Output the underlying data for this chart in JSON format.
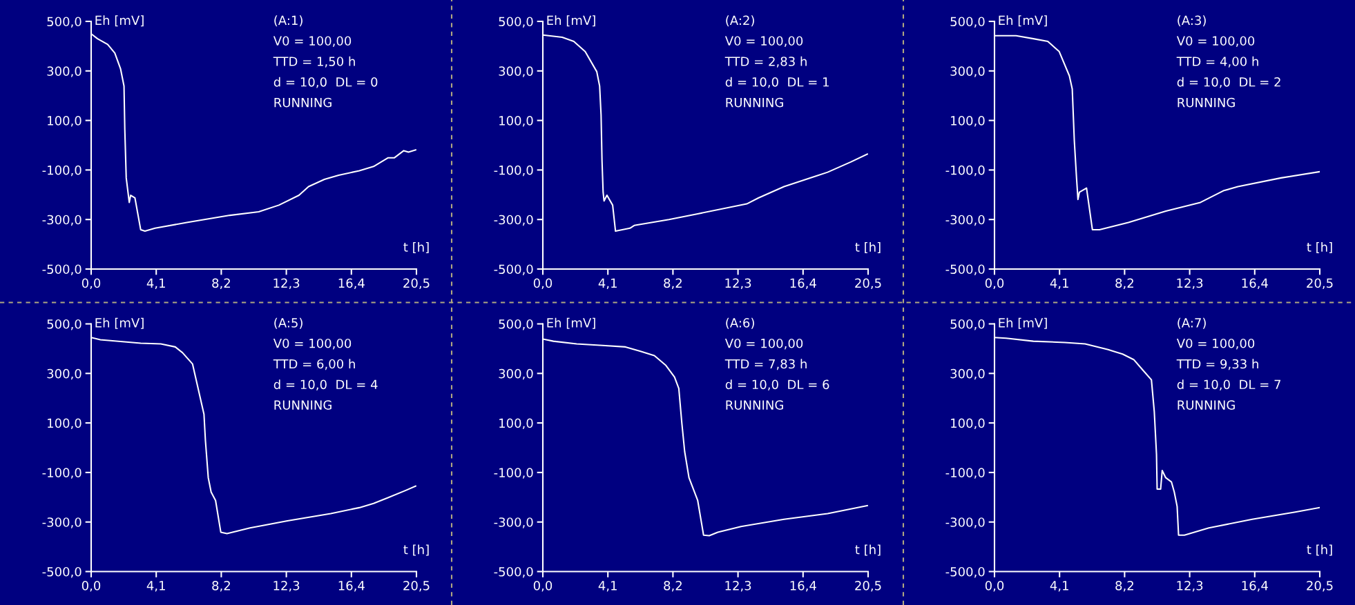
{
  "chart_data": [
    {
      "type": "line",
      "title": "(A:1)",
      "xlabel": "t [h]",
      "ylabel": "Eh [mV]",
      "annotations": [
        "V0 = 100,00",
        "TTD = 1,50 h",
        "d = 10,0  DL = 0",
        "RUNNING"
      ],
      "xlim": [
        0,
        20.5
      ],
      "ylim": [
        -500,
        500
      ],
      "xticks": [
        {
          "value": 0,
          "label": "0,0"
        },
        {
          "value": 4.1,
          "label": "4,1"
        },
        {
          "value": 8.2,
          "label": "8,2"
        },
        {
          "value": 12.3,
          "label": "12,3"
        },
        {
          "value": 16.4,
          "label": "16,4"
        },
        {
          "value": 20.5,
          "label": "20,5"
        }
      ],
      "yticks": [
        {
          "value": -500,
          "label": "-500,0"
        },
        {
          "value": -300,
          "label": "-300,0"
        },
        {
          "value": -100,
          "label": "-100,0"
        },
        {
          "value": 100,
          "label": "100,0"
        },
        {
          "value": 300,
          "label": "300,0"
        },
        {
          "value": 500,
          "label": "500,0"
        }
      ],
      "series": [
        {
          "color": "#ffffff",
          "x": [
            0,
            0.4,
            1.04,
            1.49,
            1.85,
            2.07,
            2.12,
            2.21,
            2.4,
            2.49,
            2.76,
            3.12,
            3.39,
            4.03,
            6.03,
            8.75,
            10.56,
            11.83,
            13.1,
            13.7,
            14.7,
            15.6,
            16.9,
            17.8,
            18.7,
            19.1,
            19.7,
            20.0,
            20.45
          ],
          "values": [
            450,
            430,
            407,
            372,
            309,
            239,
            65,
            -132,
            -231,
            -202,
            -213,
            -341,
            -347,
            -335,
            -312,
            -283,
            -269,
            -242,
            -202,
            -167,
            -138,
            -121,
            -103,
            -86,
            -51,
            -51,
            -22,
            -28,
            -19
          ]
        }
      ]
    },
    {
      "type": "line",
      "title": "(A:2)",
      "xlabel": "t [h]",
      "ylabel": "Eh [mV]",
      "annotations": [
        "V0 = 100,00",
        "TTD = 2,83 h",
        "d = 10,0  DL = 1",
        "RUNNING"
      ],
      "xlim": [
        0,
        20.5
      ],
      "ylim": [
        -500,
        500
      ],
      "xticks": [
        {
          "value": 0,
          "label": "0,0"
        },
        {
          "value": 4.1,
          "label": "4,1"
        },
        {
          "value": 8.2,
          "label": "8,2"
        },
        {
          "value": 12.3,
          "label": "12,3"
        },
        {
          "value": 16.4,
          "label": "16,4"
        },
        {
          "value": 20.5,
          "label": "20,5"
        }
      ],
      "yticks": [
        {
          "value": -500,
          "label": "-500,0"
        },
        {
          "value": -300,
          "label": "-300,0"
        },
        {
          "value": -100,
          "label": "-100,0"
        },
        {
          "value": 100,
          "label": "100,0"
        },
        {
          "value": 300,
          "label": "300,0"
        },
        {
          "value": 500,
          "label": "500,0"
        }
      ],
      "series": [
        {
          "color": "#ffffff",
          "x": [
            0,
            1.22,
            1.95,
            2.67,
            3.4,
            3.58,
            3.67,
            3.73,
            3.8,
            3.86,
            4.04,
            4.4,
            4.58,
            5.49,
            5.76,
            7.95,
            9.76,
            12.85,
            13.58,
            15.2,
            17.95,
            19.4,
            20.45
          ],
          "values": [
            445,
            436,
            419,
            378,
            297,
            239,
            123,
            -63,
            -190,
            -225,
            -202,
            -242,
            -347,
            -335,
            -324,
            -300,
            -277,
            -237,
            -213,
            -167,
            -109,
            -68,
            -36
          ]
        }
      ]
    },
    {
      "type": "line",
      "title": "(A:3)",
      "xlabel": "t [h]",
      "ylabel": "Eh [mV]",
      "annotations": [
        "V0 = 100,00",
        "TTD = 4,00 h",
        "d = 10,0  DL = 2",
        "RUNNING"
      ],
      "xlim": [
        0,
        20.5
      ],
      "ylim": [
        -500,
        500
      ],
      "xticks": [
        {
          "value": 0,
          "label": "0,0"
        },
        {
          "value": 4.1,
          "label": "4,1"
        },
        {
          "value": 8.2,
          "label": "8,2"
        },
        {
          "value": 12.3,
          "label": "12,3"
        },
        {
          "value": 16.4,
          "label": "16,4"
        },
        {
          "value": 20.5,
          "label": "20,5"
        }
      ],
      "yticks": [
        {
          "value": -500,
          "label": "-500,0"
        },
        {
          "value": -300,
          "label": "-300,0"
        },
        {
          "value": -100,
          "label": "-100,0"
        },
        {
          "value": 100,
          "label": "100,0"
        },
        {
          "value": 300,
          "label": "300,0"
        },
        {
          "value": 500,
          "label": "500,0"
        }
      ],
      "series": [
        {
          "color": "#ffffff",
          "x": [
            0,
            1.36,
            2.45,
            3.36,
            4.08,
            4.72,
            4.9,
            5.03,
            5.17,
            5.26,
            5.35,
            5.8,
            6.17,
            6.62,
            8.44,
            10.8,
            12.98,
            14.42,
            15.34,
            18.06,
            20.5
          ],
          "values": [
            442,
            442,
            430,
            419,
            378,
            280,
            227,
            19,
            -132,
            -219,
            -190,
            -173,
            -341,
            -341,
            -312,
            -266,
            -231,
            -184,
            -167,
            -132,
            -107
          ]
        }
      ]
    },
    {
      "type": "line",
      "title": "(A:5)",
      "xlabel": "t [h]",
      "ylabel": "Eh [mV]",
      "annotations": [
        "V0 = 100,00",
        "TTD = 6,00 h",
        "d = 10,0  DL = 4",
        "RUNNING"
      ],
      "xlim": [
        0,
        20.5
      ],
      "ylim": [
        -500,
        500
      ],
      "xticks": [
        {
          "value": 0,
          "label": "0,0"
        },
        {
          "value": 4.1,
          "label": "4,1"
        },
        {
          "value": 8.2,
          "label": "8,2"
        },
        {
          "value": 12.3,
          "label": "12,3"
        },
        {
          "value": 16.4,
          "label": "16,4"
        },
        {
          "value": 20.5,
          "label": "20,5"
        }
      ],
      "yticks": [
        {
          "value": -500,
          "label": "-500,0"
        },
        {
          "value": -300,
          "label": "-300,0"
        },
        {
          "value": -100,
          "label": "-100,0"
        },
        {
          "value": 100,
          "label": "100,0"
        },
        {
          "value": 300,
          "label": "300,0"
        },
        {
          "value": 500,
          "label": "500,0"
        }
      ],
      "series": [
        {
          "color": "#ffffff",
          "x": [
            0,
            0.58,
            3.12,
            4.39,
            5.3,
            5.75,
            6.39,
            6.66,
            7.11,
            7.2,
            7.38,
            7.56,
            7.84,
            8.17,
            8.56,
            10.01,
            12.37,
            15.1,
            16.9,
            17.8,
            18.7,
            19.8,
            20.45
          ],
          "values": [
            445,
            436,
            422,
            419,
            407,
            384,
            338,
            262,
            135,
            30,
            -121,
            -179,
            -213,
            -341,
            -347,
            -324,
            -295,
            -266,
            -242,
            -225,
            -202,
            -173,
            -155
          ]
        }
      ]
    },
    {
      "type": "line",
      "title": "(A:6)",
      "xlabel": "t [h]",
      "ylabel": "Eh [mV]",
      "annotations": [
        "V0 = 100,00",
        "TTD = 7,83 h",
        "d = 10,0  DL = 6",
        "RUNNING"
      ],
      "xlim": [
        0,
        20.5
      ],
      "ylim": [
        -500,
        500
      ],
      "xticks": [
        {
          "value": 0,
          "label": "0,0"
        },
        {
          "value": 4.1,
          "label": "4,1"
        },
        {
          "value": 8.2,
          "label": "8,2"
        },
        {
          "value": 12.3,
          "label": "12,3"
        },
        {
          "value": 16.4,
          "label": "16,4"
        },
        {
          "value": 20.5,
          "label": "20,5"
        }
      ],
      "yticks": [
        {
          "value": -500,
          "label": "-500,0"
        },
        {
          "value": -300,
          "label": "-300,0"
        },
        {
          "value": -100,
          "label": "-100,0"
        },
        {
          "value": 100,
          "label": "100,0"
        },
        {
          "value": 300,
          "label": "300,0"
        },
        {
          "value": 500,
          "label": "500,0"
        }
      ],
      "series": [
        {
          "color": "#ffffff",
          "x": [
            0,
            0.67,
            2.13,
            3.76,
            5.21,
            6.12,
            7.03,
            7.76,
            8.3,
            8.57,
            8.76,
            8.94,
            9.21,
            9.76,
            10.13,
            10.49,
            11.03,
            12.49,
            15.2,
            17.95,
            20.45
          ],
          "values": [
            439,
            430,
            419,
            413,
            407,
            390,
            372,
            332,
            285,
            239,
            100,
            -16,
            -121,
            -213,
            -353,
            -355,
            -341,
            -318,
            -289,
            -266,
            -234
          ]
        }
      ]
    },
    {
      "type": "line",
      "title": "(A:7)",
      "xlabel": "t [h]",
      "ylabel": "Eh [mV]",
      "annotations": [
        "V0 = 100,00",
        "TTD = 9,33 h",
        "d = 10,0  DL = 7",
        "RUNNING"
      ],
      "xlim": [
        0,
        20.5
      ],
      "ylim": [
        -500,
        500
      ],
      "xticks": [
        {
          "value": 0,
          "label": "0,0"
        },
        {
          "value": 4.1,
          "label": "4,1"
        },
        {
          "value": 8.2,
          "label": "8,2"
        },
        {
          "value": 12.3,
          "label": "12,3"
        },
        {
          "value": 16.4,
          "label": "16,4"
        },
        {
          "value": 20.5,
          "label": "20,5"
        }
      ],
      "yticks": [
        {
          "value": -500,
          "label": "-500,0"
        },
        {
          "value": -300,
          "label": "-300,0"
        },
        {
          "value": -100,
          "label": "-100,0"
        },
        {
          "value": 100,
          "label": "100,0"
        },
        {
          "value": 300,
          "label": "300,0"
        },
        {
          "value": 500,
          "label": "500,0"
        }
      ],
      "series": [
        {
          "color": "#ffffff",
          "x": [
            0,
            0.73,
            2.45,
            4.44,
            5.71,
            7.16,
            8.07,
            8.79,
            9.34,
            9.89,
            10.07,
            10.21,
            10.25,
            10.47,
            10.57,
            10.79,
            11.15,
            11.33,
            11.51,
            11.6,
            11.97,
            13.51,
            16.24,
            18.96,
            20.47
          ],
          "values": [
            445,
            442,
            430,
            425,
            419,
            396,
            378,
            355,
            314,
            274,
            146,
            -27,
            -167,
            -167,
            -92,
            -121,
            -138,
            -179,
            -237,
            -353,
            -353,
            -324,
            -289,
            -260,
            -242
          ]
        }
      ]
    }
  ]
}
